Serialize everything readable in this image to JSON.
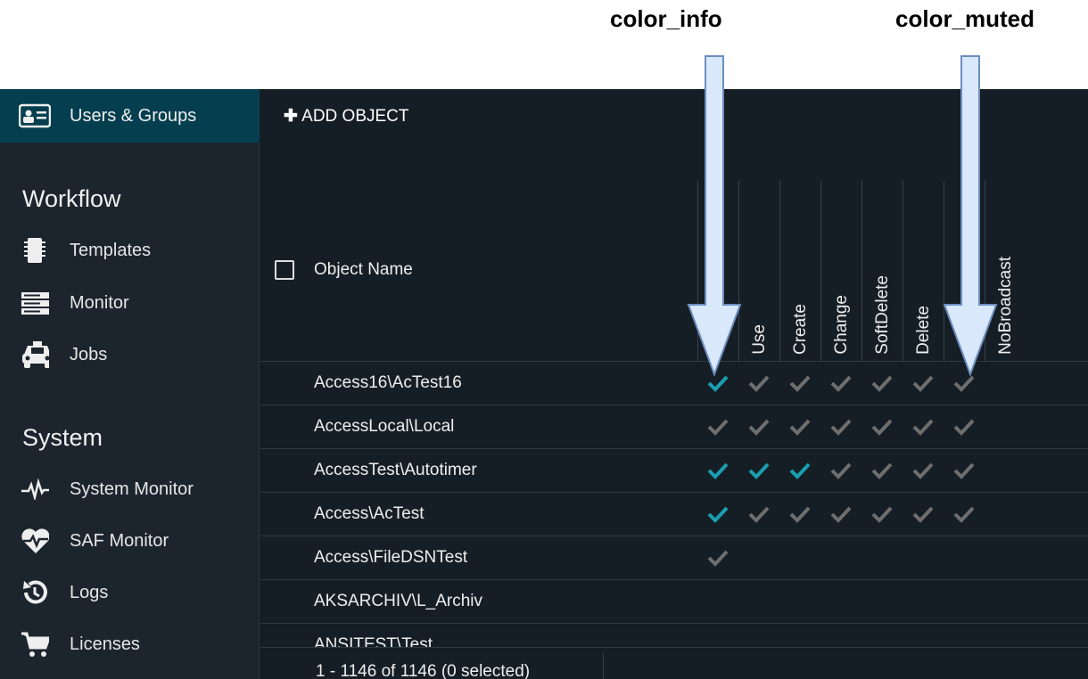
{
  "annotations": [
    {
      "label": "color_info"
    },
    {
      "label": "color_muted"
    }
  ],
  "colors": {
    "info": "#1a9fb0",
    "muted": "#6e6e6e",
    "sidebar_active": "#053f4f"
  },
  "sidebar": {
    "active": {
      "label": "Users & Groups",
      "icon": "id-card-icon"
    },
    "sections": [
      {
        "title": "Workflow",
        "items": [
          {
            "label": "Templates",
            "icon": "chip-icon"
          },
          {
            "label": "Monitor",
            "icon": "server-icon"
          },
          {
            "label": "Jobs",
            "icon": "taxi-icon"
          }
        ]
      },
      {
        "title": "System",
        "items": [
          {
            "label": "System Monitor",
            "icon": "heartbeat-icon"
          },
          {
            "label": "SAF Monitor",
            "icon": "heart-pulse-icon"
          },
          {
            "label": "Logs",
            "icon": "history-icon"
          },
          {
            "label": "Licenses",
            "icon": "cart-icon"
          }
        ]
      }
    ]
  },
  "toolbar": {
    "add_label": "ADD OBJECT"
  },
  "table": {
    "name_header": "Object Name",
    "columns": [
      "",
      "Use",
      "Create",
      "Change",
      "SoftDelete",
      "Delete",
      "",
      "NoBroadcast"
    ],
    "rows": [
      {
        "name": "Access16\\AcTest16",
        "checks": [
          "info",
          "muted",
          "muted",
          "muted",
          "muted",
          "muted",
          "muted"
        ]
      },
      {
        "name": "AccessLocal\\Local",
        "checks": [
          "muted",
          "muted",
          "muted",
          "muted",
          "muted",
          "muted",
          "muted"
        ]
      },
      {
        "name": "AccessTest\\Autotimer",
        "checks": [
          "info",
          "info",
          "info",
          "muted",
          "muted",
          "muted",
          "muted"
        ]
      },
      {
        "name": "Access\\AcTest",
        "checks": [
          "info",
          "muted",
          "muted",
          "muted",
          "muted",
          "muted",
          "muted"
        ]
      },
      {
        "name": "Access\\FileDSNTest",
        "checks": [
          "muted"
        ]
      },
      {
        "name": "AKSARCHIV\\L_Archiv",
        "checks": []
      },
      {
        "name": "ANSITEST\\Test",
        "checks": []
      }
    ],
    "footer": "1 - 1146 of 1146 (0 selected)"
  }
}
